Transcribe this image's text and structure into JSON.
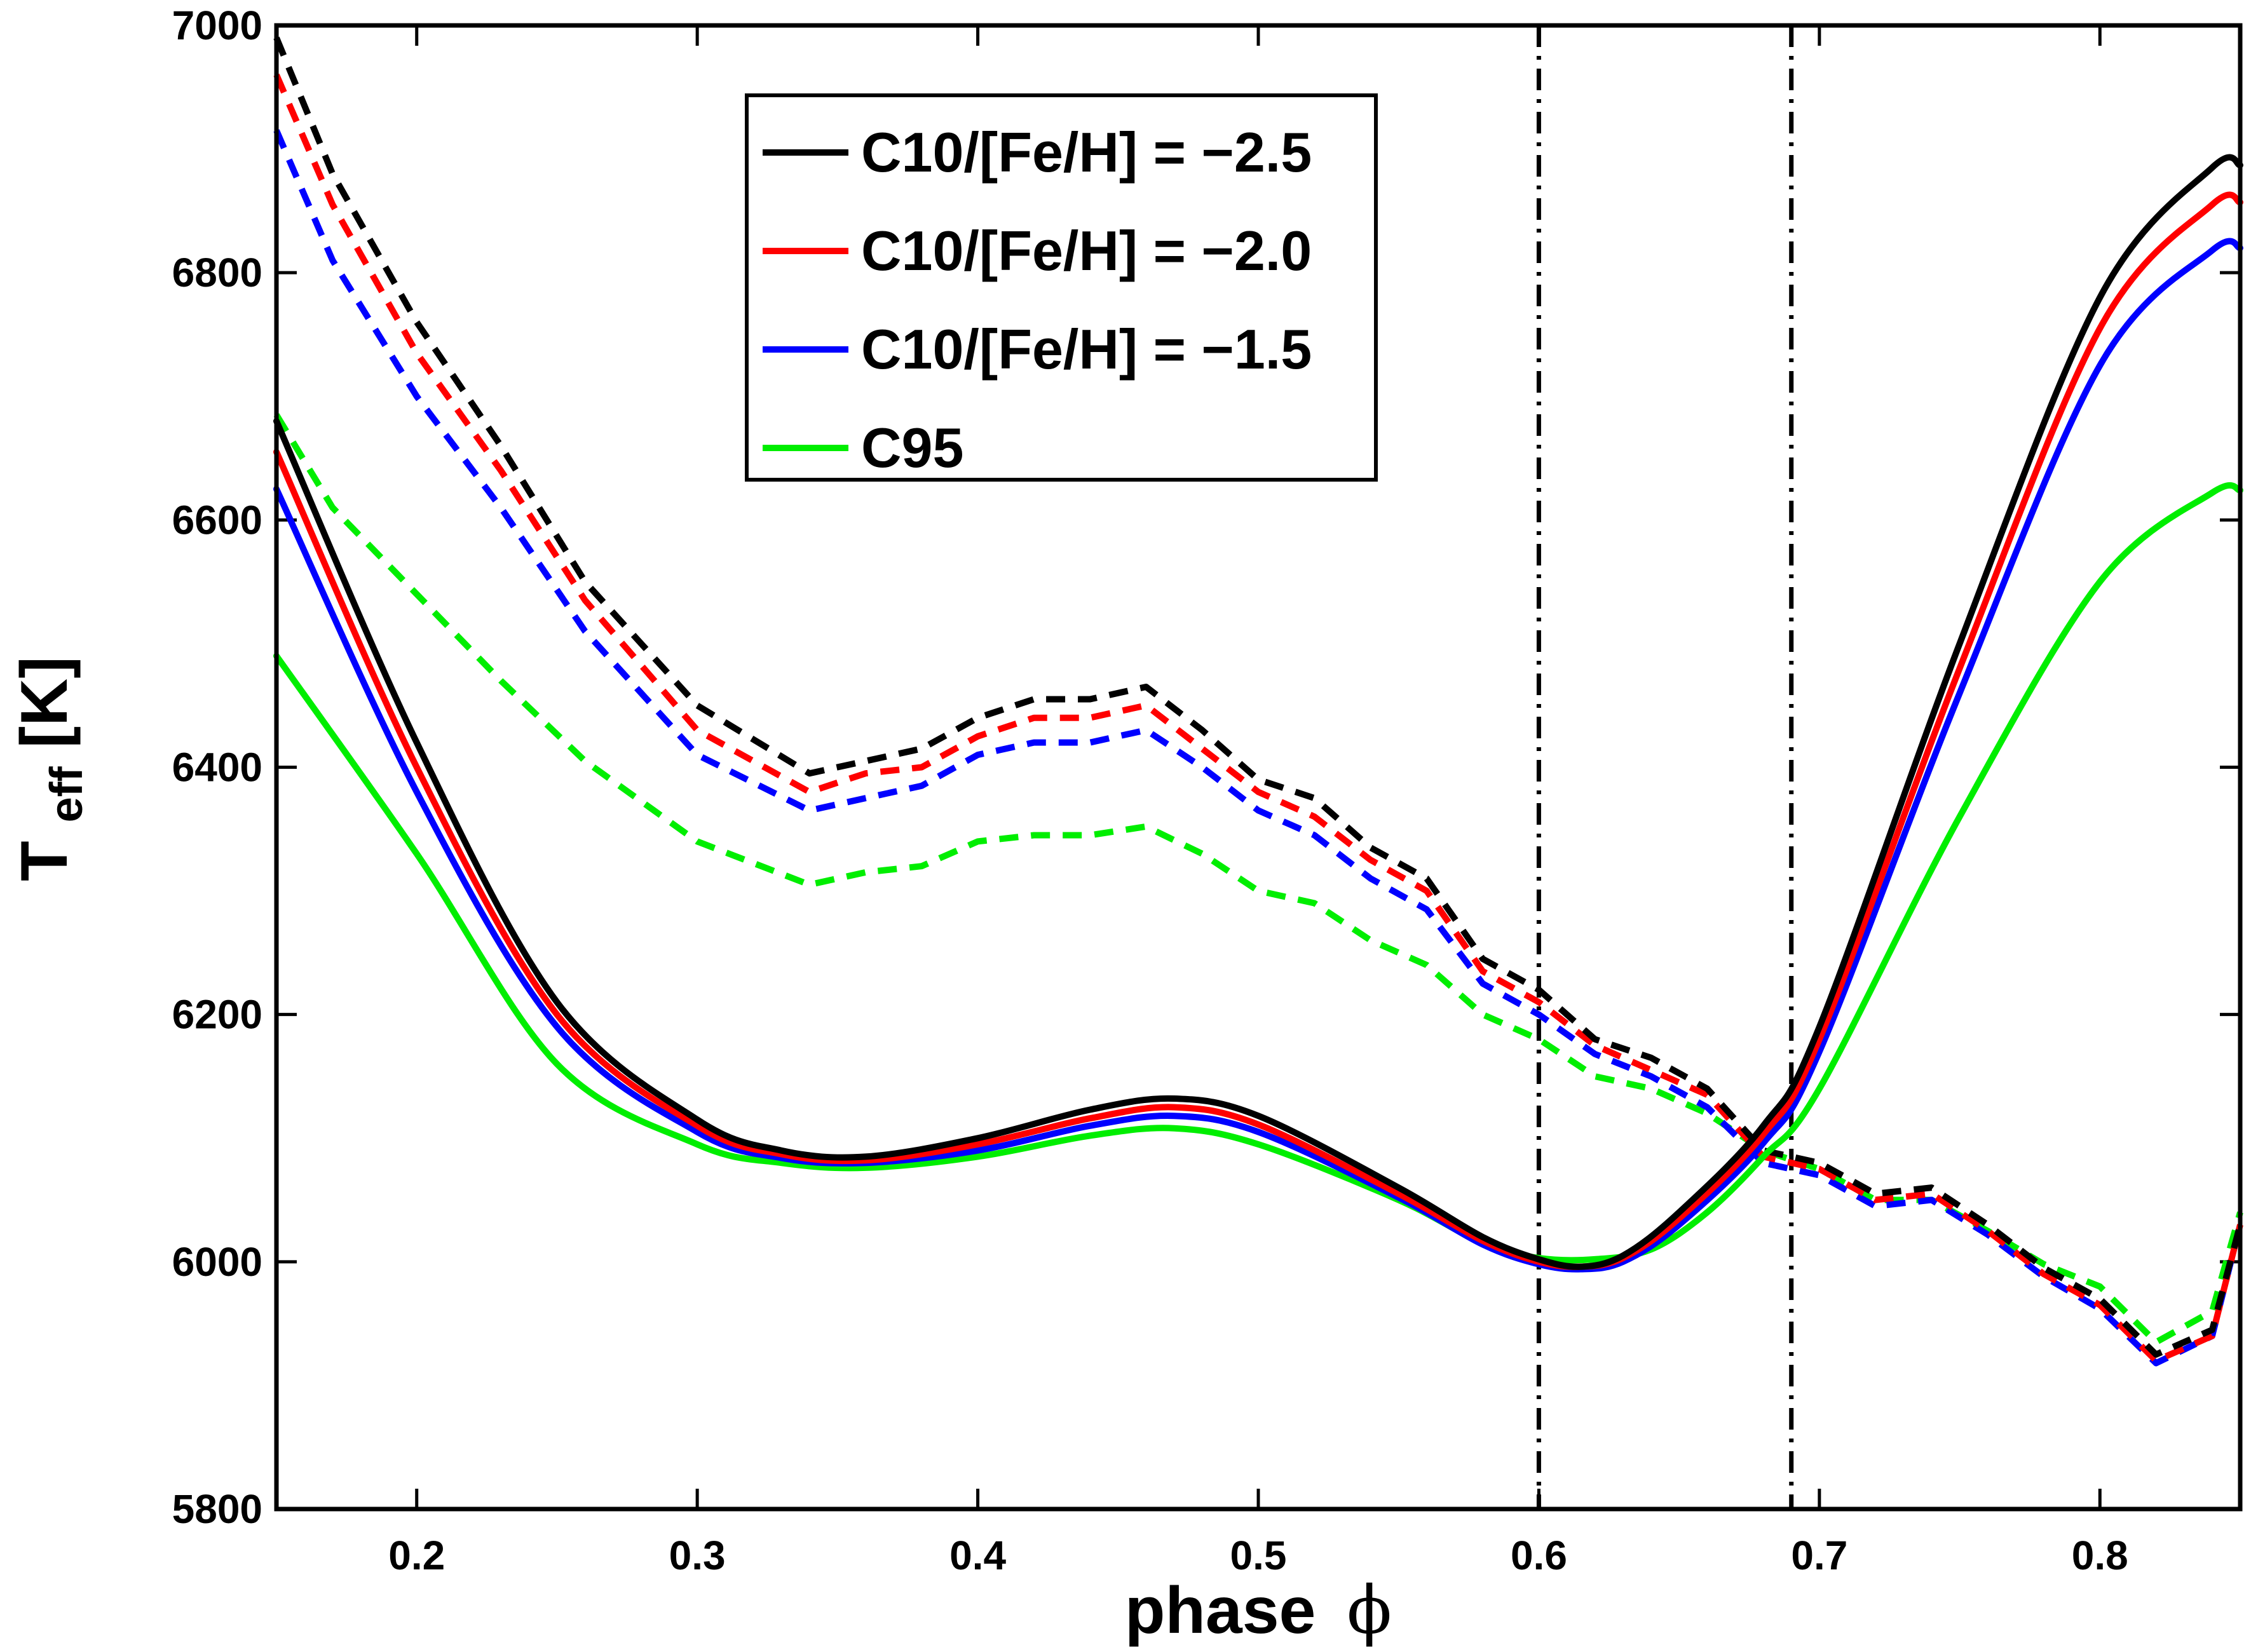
{
  "chart_data": {
    "type": "line",
    "title": "",
    "xlabel_main": "phase",
    "xlabel_symbol": "ϕ",
    "ylabel_main": "T",
    "ylabel_sub": "eff",
    "ylabel_unit": "[K]",
    "xlim": [
      0.15,
      0.85
    ],
    "ylim": [
      5800,
      7000
    ],
    "xticks": [
      0.2,
      0.3,
      0.4,
      0.5,
      0.6,
      0.7,
      0.8
    ],
    "xtick_labels": [
      "0.2",
      "0.3",
      "0.4",
      "0.5",
      "0.6",
      "0.7",
      "0.8"
    ],
    "yticks": [
      5800,
      6000,
      6200,
      6400,
      6600,
      6800,
      7000
    ],
    "ytick_labels": [
      "5800",
      "6000",
      "6200",
      "6400",
      "6600",
      "6800",
      "7000"
    ],
    "legend_position": "top-center",
    "vlines": [
      0.6,
      0.69
    ],
    "vline_color": "#000000",
    "series": [
      {
        "name": "C10/[Fe/H] = −2.5",
        "color": "#000000",
        "solid": {
          "x": [
            0.15,
            0.2,
            0.25,
            0.3,
            0.33,
            0.36,
            0.4,
            0.44,
            0.47,
            0.5,
            0.55,
            0.58,
            0.6,
            0.615,
            0.63,
            0.65,
            0.68,
            0.7,
            0.75,
            0.8,
            0.84,
            0.85
          ],
          "y": [
            6680,
            6420,
            6210,
            6115,
            6090,
            6085,
            6100,
            6123,
            6132,
            6118,
            6060,
            6020,
            6002,
            5996,
            6005,
            6040,
            6110,
            6190,
            6500,
            6780,
            6885,
            6887
          ]
        },
        "dashed": {
          "x": [
            0.15,
            0.17,
            0.2,
            0.23,
            0.26,
            0.3,
            0.34,
            0.36,
            0.38,
            0.4,
            0.42,
            0.44,
            0.46,
            0.48,
            0.5,
            0.52,
            0.54,
            0.56,
            0.58,
            0.6,
            0.62,
            0.64,
            0.66,
            0.68,
            0.7,
            0.72,
            0.74,
            0.76,
            0.78,
            0.8,
            0.82,
            0.84,
            0.85
          ],
          "y": [
            6990,
            6880,
            6760,
            6660,
            6550,
            6450,
            6395,
            6405,
            6415,
            6440,
            6455,
            6455,
            6465,
            6430,
            6390,
            6375,
            6335,
            6310,
            6245,
            6220,
            6180,
            6165,
            6140,
            6090,
            6080,
            6055,
            6060,
            6030,
            5995,
            5970,
            5925,
            5945,
            6030
          ]
        }
      },
      {
        "name": "C10/[Fe/H] = −2.0",
        "color": "#ff0000",
        "solid": {
          "x": [
            0.15,
            0.2,
            0.25,
            0.3,
            0.33,
            0.36,
            0.4,
            0.44,
            0.47,
            0.5,
            0.55,
            0.58,
            0.6,
            0.615,
            0.63,
            0.65,
            0.68,
            0.7,
            0.75,
            0.8,
            0.84,
            0.85
          ],
          "y": [
            6655,
            6400,
            6200,
            6110,
            6087,
            6082,
            6095,
            6116,
            6125,
            6111,
            6055,
            6017,
            6000,
            5996,
            6003,
            6035,
            6103,
            6180,
            6480,
            6755,
            6855,
            6857
          ]
        },
        "dashed": {
          "x": [
            0.15,
            0.17,
            0.2,
            0.23,
            0.26,
            0.3,
            0.34,
            0.36,
            0.38,
            0.4,
            0.42,
            0.44,
            0.46,
            0.48,
            0.5,
            0.52,
            0.54,
            0.56,
            0.58,
            0.6,
            0.62,
            0.64,
            0.66,
            0.68,
            0.7,
            0.72,
            0.74,
            0.76,
            0.78,
            0.8,
            0.82,
            0.84,
            0.85
          ],
          "y": [
            6960,
            6855,
            6735,
            6640,
            6535,
            6430,
            6380,
            6395,
            6400,
            6425,
            6440,
            6440,
            6450,
            6415,
            6380,
            6360,
            6325,
            6300,
            6235,
            6210,
            6175,
            6155,
            6135,
            6085,
            6075,
            6050,
            6055,
            6025,
            5990,
            5965,
            5920,
            5940,
            6030
          ]
        }
      },
      {
        "name": "C10/[Fe/H] = −1.5",
        "color": "#0000ff",
        "solid": {
          "x": [
            0.15,
            0.2,
            0.25,
            0.3,
            0.33,
            0.36,
            0.4,
            0.44,
            0.47,
            0.5,
            0.55,
            0.58,
            0.6,
            0.615,
            0.63,
            0.65,
            0.68,
            0.7,
            0.75,
            0.8,
            0.84,
            0.85
          ],
          "y": [
            6625,
            6380,
            6190,
            6105,
            6084,
            6080,
            6090,
            6110,
            6118,
            6105,
            6052,
            6014,
            5998,
            5994,
            6000,
            6030,
            6096,
            6170,
            6460,
            6725,
            6818,
            6820
          ]
        },
        "dashed": {
          "x": [
            0.15,
            0.17,
            0.2,
            0.23,
            0.26,
            0.3,
            0.34,
            0.36,
            0.38,
            0.4,
            0.42,
            0.44,
            0.46,
            0.48,
            0.5,
            0.52,
            0.54,
            0.56,
            0.58,
            0.6,
            0.62,
            0.64,
            0.66,
            0.68,
            0.7,
            0.72,
            0.74,
            0.76,
            0.78,
            0.8,
            0.82,
            0.84,
            0.85
          ],
          "y": [
            6915,
            6810,
            6700,
            6610,
            6510,
            6410,
            6365,
            6375,
            6385,
            6410,
            6420,
            6420,
            6430,
            6400,
            6365,
            6345,
            6310,
            6285,
            6225,
            6200,
            6168,
            6150,
            6125,
            6080,
            6070,
            6045,
            6050,
            6022,
            5988,
            5962,
            5918,
            5940,
            6030
          ]
        }
      },
      {
        "name": "C95",
        "color": "#00ee00",
        "solid": {
          "x": [
            0.15,
            0.2,
            0.25,
            0.3,
            0.33,
            0.36,
            0.4,
            0.44,
            0.47,
            0.5,
            0.55,
            0.58,
            0.6,
            0.62,
            0.64,
            0.66,
            0.68,
            0.7,
            0.75,
            0.8,
            0.84,
            0.85
          ],
          "y": [
            6490,
            6330,
            6160,
            6095,
            6080,
            6076,
            6085,
            6102,
            6108,
            6095,
            6050,
            6015,
            6003,
            6002,
            6010,
            6040,
            6085,
            6140,
            6360,
            6550,
            6622,
            6624
          ]
        },
        "dashed": {
          "x": [
            0.15,
            0.17,
            0.2,
            0.23,
            0.26,
            0.3,
            0.34,
            0.36,
            0.38,
            0.4,
            0.42,
            0.44,
            0.46,
            0.48,
            0.5,
            0.52,
            0.54,
            0.56,
            0.58,
            0.6,
            0.62,
            0.64,
            0.66,
            0.68,
            0.7,
            0.72,
            0.74,
            0.76,
            0.78,
            0.8,
            0.82,
            0.84,
            0.85
          ],
          "y": [
            6685,
            6610,
            6540,
            6470,
            6405,
            6340,
            6305,
            6315,
            6320,
            6340,
            6345,
            6345,
            6352,
            6330,
            6300,
            6290,
            6260,
            6240,
            6200,
            6180,
            6150,
            6140,
            6120,
            6090,
            6075,
            6050,
            6050,
            6025,
            5998,
            5980,
            5935,
            5960,
            6040
          ]
        }
      }
    ]
  }
}
